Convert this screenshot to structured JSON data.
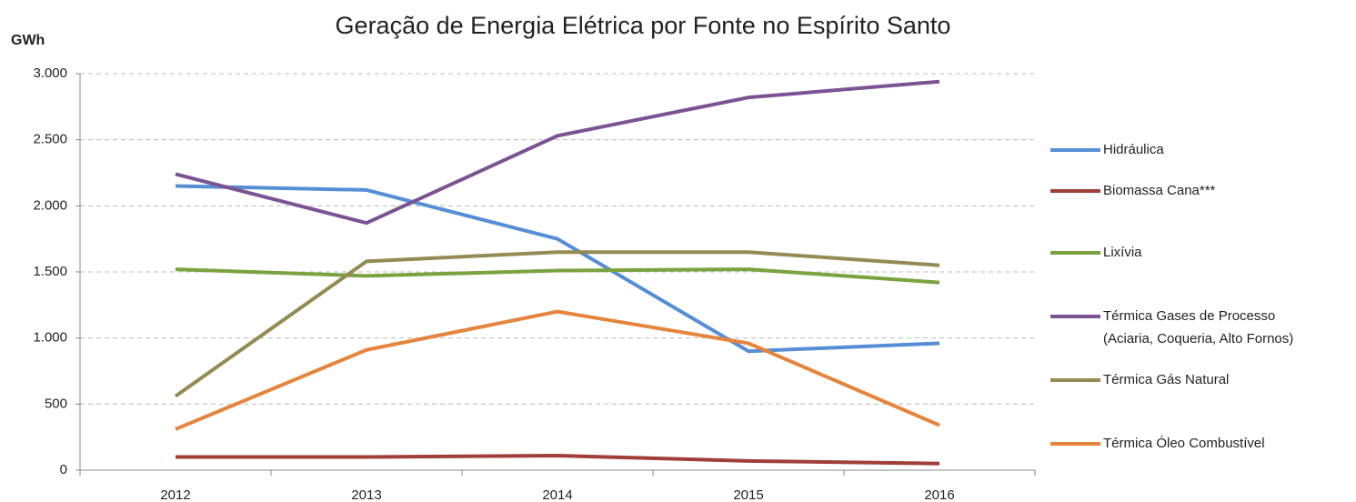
{
  "chart_data": {
    "type": "line",
    "title": "Geração de Energia Elétrica por Fonte no Espírito Santo",
    "y_label": "GWh",
    "categories": [
      "2012",
      "2013",
      "2014",
      "2015",
      "2016"
    ],
    "series": [
      {
        "name": "Hidráulica",
        "color": "#558ed5",
        "values": [
          2150,
          2120,
          1750,
          900,
          960
        ]
      },
      {
        "name": "Biomassa Cana***",
        "color": "#a03f38",
        "values": [
          100,
          100,
          110,
          70,
          50
        ]
      },
      {
        "name": "Lixívia",
        "color": "#7aa33f",
        "values": [
          1520,
          1470,
          1510,
          1520,
          1420
        ]
      },
      {
        "name": "Térmica Gases de Processo (Aciaria, Coqueria, Alto Fornos)",
        "color": "#7b5393",
        "values": [
          2240,
          1870,
          2530,
          2820,
          2940
        ]
      },
      {
        "name": "Térmica Gás Natural",
        "color": "#948a54",
        "values": [
          560,
          1580,
          1650,
          1650,
          1550
        ]
      },
      {
        "name": "Térmica Óleo Combustível",
        "color": "#e5843c",
        "values": [
          310,
          910,
          1200,
          960,
          340
        ]
      }
    ],
    "ylim": [
      0,
      3000
    ],
    "yticks": [
      0,
      500,
      {
        "value": 1000,
        "label": "1.000"
      },
      {
        "value": 1500,
        "label": "1.500"
      },
      {
        "value": 2000,
        "label": "2.000"
      },
      {
        "value": 2500,
        "label": "2.500"
      },
      {
        "value": 3000,
        "label": "3.000"
      }
    ],
    "grid": true,
    "legend": "right"
  }
}
